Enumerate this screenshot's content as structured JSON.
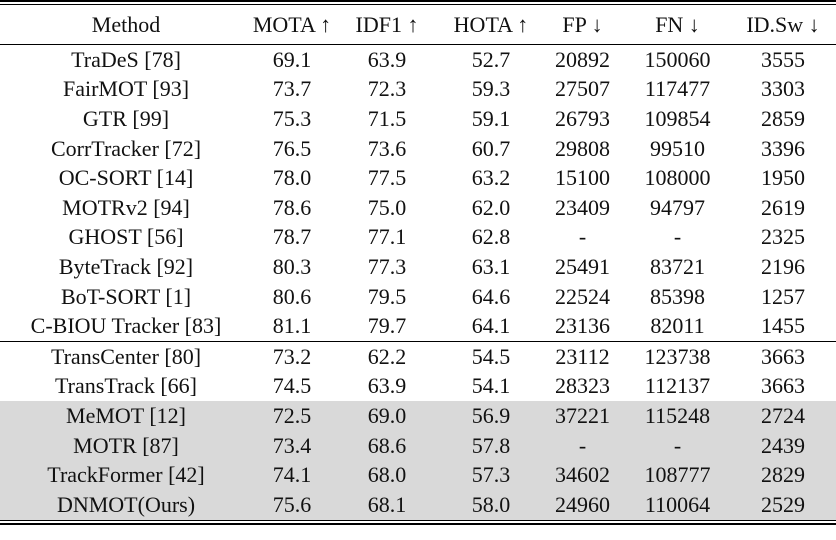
{
  "table": {
    "headers": [
      "Method",
      "MOTA ↑",
      "IDF1 ↑",
      "HOTA ↑",
      "FP ↓",
      "FN ↓",
      "ID.Sw ↓"
    ],
    "highlight_color": "#d9d9d9",
    "groups": [
      {
        "rows": [
          {
            "method": "TraDeS [78]",
            "values": [
              "69.1",
              "63.9",
              "52.7",
              "20892",
              "150060",
              "3555"
            ],
            "bold": [],
            "highlight": false
          },
          {
            "method": "FairMOT [93]",
            "values": [
              "73.7",
              "72.3",
              "59.3",
              "27507",
              "117477",
              "3303"
            ],
            "bold": [],
            "highlight": false
          },
          {
            "method": "GTR [99]",
            "values": [
              "75.3",
              "71.5",
              "59.1",
              "26793",
              "109854",
              "2859"
            ],
            "bold": [],
            "highlight": false
          },
          {
            "method": "CorrTracker [72]",
            "values": [
              "76.5",
              "73.6",
              "60.7",
              "29808",
              "99510",
              "3396"
            ],
            "bold": [],
            "highlight": false
          },
          {
            "method": "OC-SORT [14]",
            "values": [
              "78.0",
              "77.5",
              "63.2",
              "15100",
              "108000",
              "1950"
            ],
            "bold": [],
            "highlight": false
          },
          {
            "method": "MOTRv2 [94]",
            "values": [
              "78.6",
              "75.0",
              "62.0",
              "23409",
              "94797",
              "2619"
            ],
            "bold": [],
            "highlight": false
          },
          {
            "method": "GHOST [56]",
            "values": [
              "78.7",
              "77.1",
              "62.8",
              "-",
              "-",
              "2325"
            ],
            "bold": [],
            "highlight": false
          },
          {
            "method": "ByteTrack [92]",
            "values": [
              "80.3",
              "77.3",
              "63.1",
              "25491",
              "83721",
              "2196"
            ],
            "bold": [],
            "highlight": false
          },
          {
            "method": "BoT-SORT [1]",
            "values": [
              "80.6",
              "79.5",
              "64.6",
              "22524",
              "85398",
              "1257"
            ],
            "bold": [],
            "highlight": false
          },
          {
            "method": "C-BIOU Tracker [83]",
            "values": [
              "81.1",
              "79.7",
              "64.1",
              "23136",
              "82011",
              "1455"
            ],
            "bold": [],
            "highlight": false
          }
        ]
      },
      {
        "rows": [
          {
            "method": "TransCenter [80]",
            "values": [
              "73.2",
              "62.2",
              "54.5",
              "23112",
              "123738",
              "3663"
            ],
            "bold": [],
            "highlight": false
          },
          {
            "method": "TransTrack [66]",
            "values": [
              "74.5",
              "63.9",
              "54.1",
              "28323",
              "112137",
              "3663"
            ],
            "bold": [],
            "highlight": false
          },
          {
            "method": "MeMOT [12]",
            "values": [
              "72.5",
              "69.0",
              "56.9",
              "37221",
              "115248",
              "2724"
            ],
            "bold": [
              1
            ],
            "highlight": true
          },
          {
            "method": "MOTR [87]",
            "values": [
              "73.4",
              "68.6",
              "57.8",
              "-",
              "-",
              "2439"
            ],
            "bold": [
              5
            ],
            "highlight": true
          },
          {
            "method": "TrackFormer [42]",
            "values": [
              "74.1",
              "68.0",
              "57.3",
              "34602",
              "108777",
              "2829"
            ],
            "bold": [
              4
            ],
            "highlight": true
          },
          {
            "method": "DNMOT(Ours)",
            "values": [
              "75.6",
              "68.1",
              "58.0",
              "24960",
              "110064",
              "2529"
            ],
            "bold": [
              0,
              2,
              3
            ],
            "highlight": true
          }
        ]
      }
    ]
  }
}
